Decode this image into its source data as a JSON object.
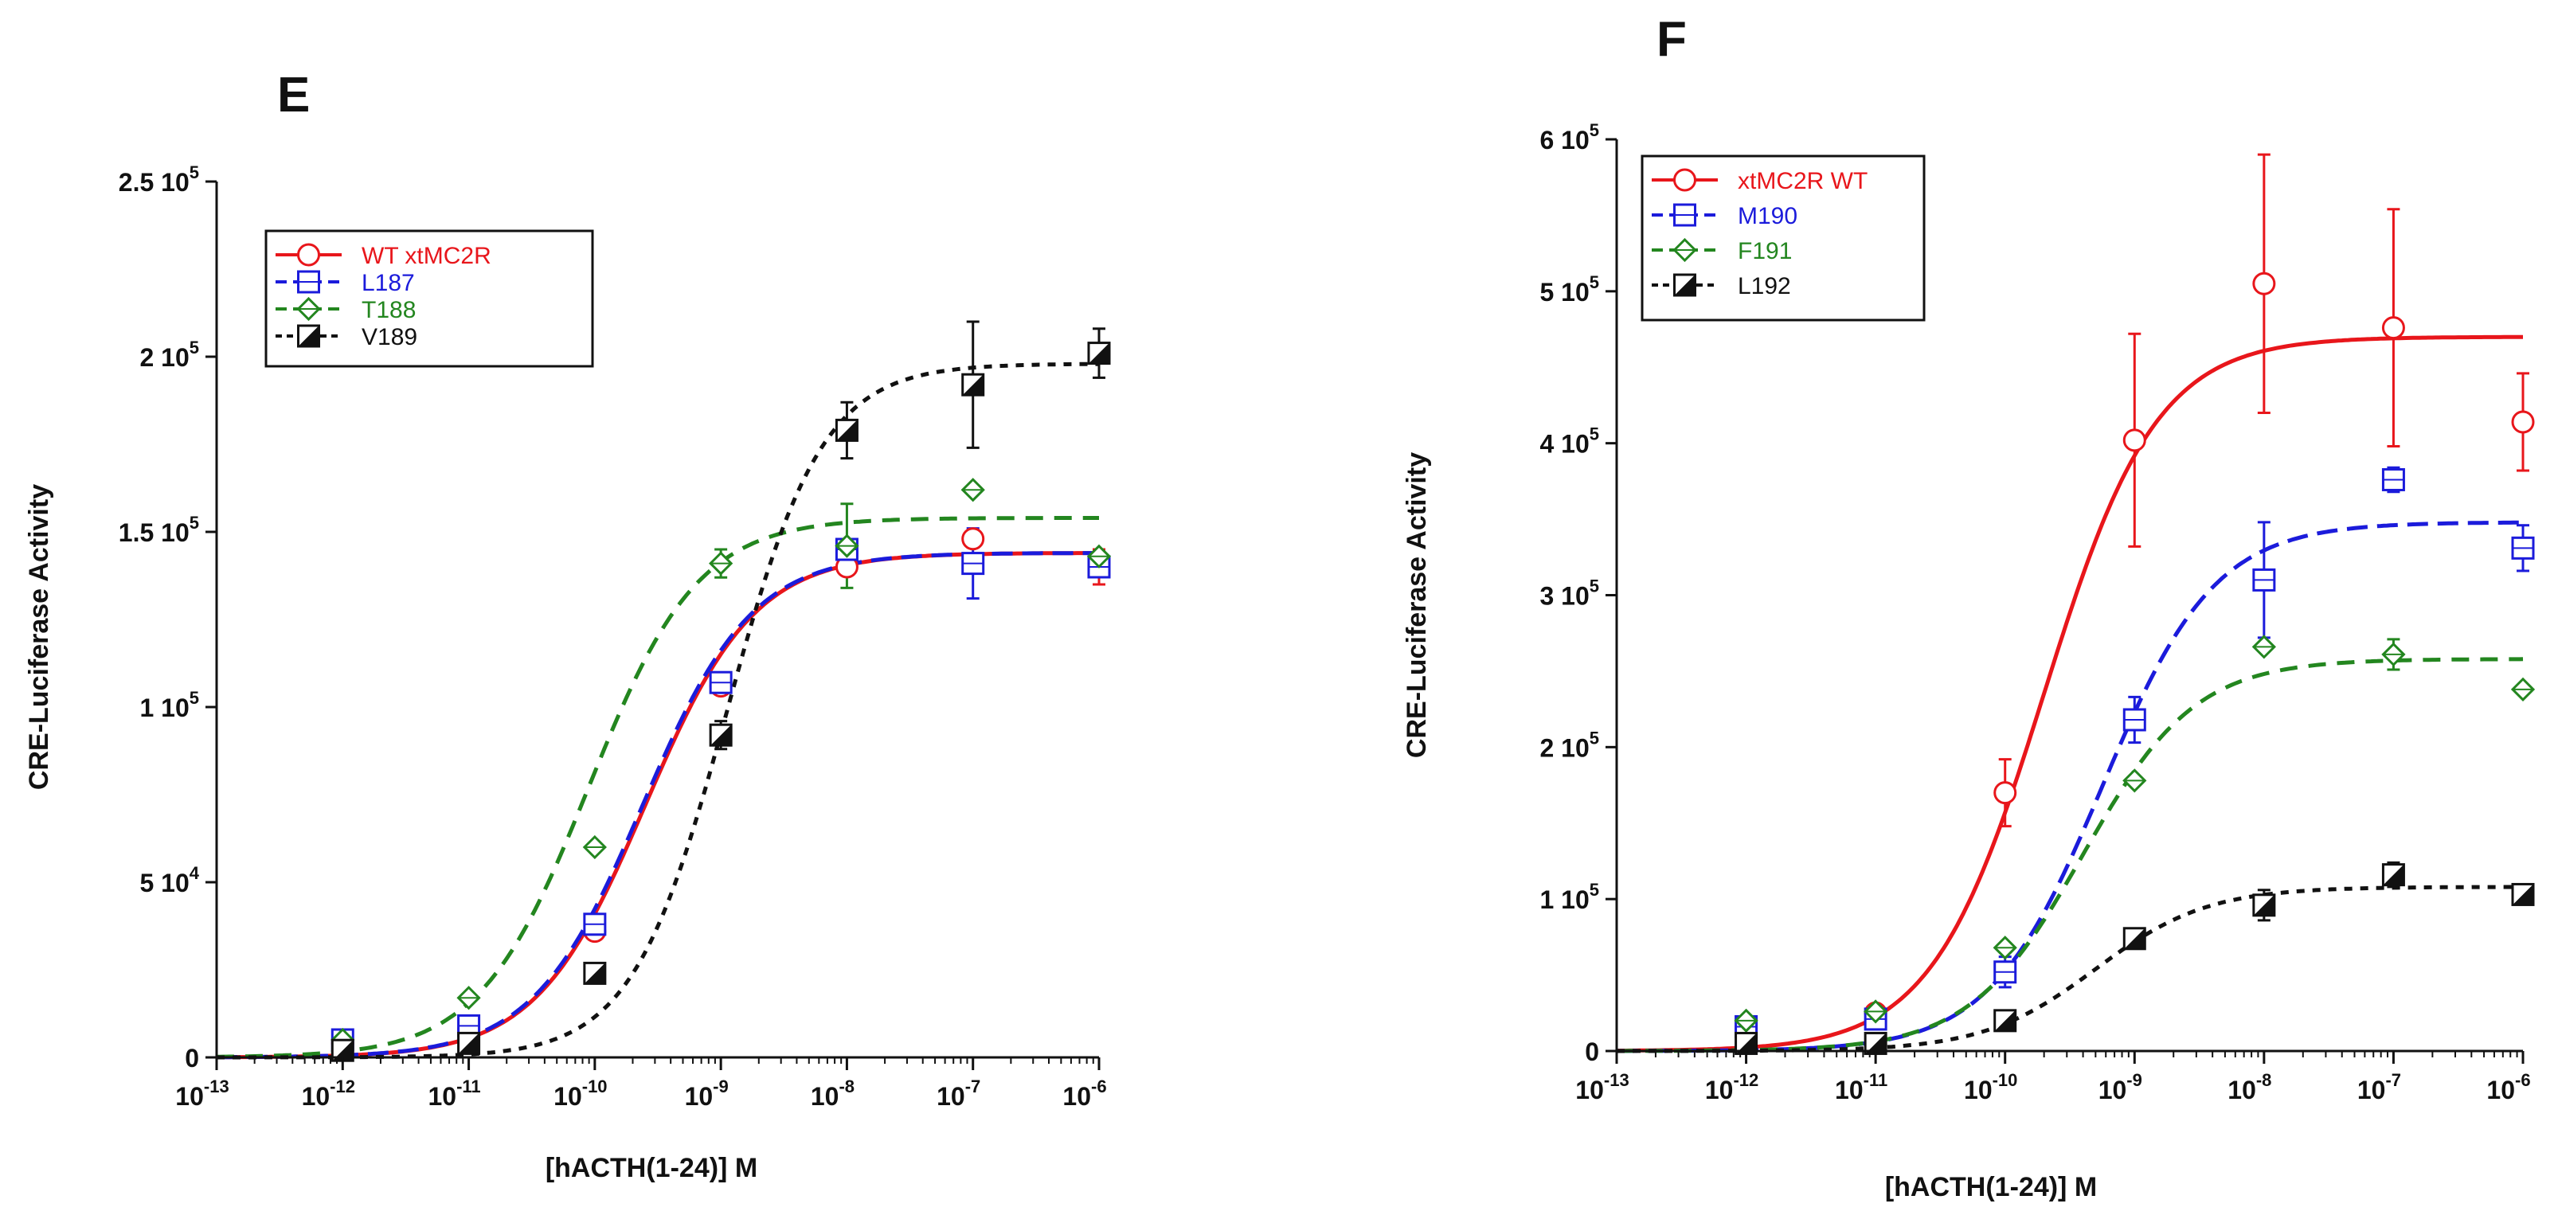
{
  "chart_data": [
    {
      "panel_label": "E",
      "type": "scatter",
      "xscale": "log",
      "xlim_exponent": [
        -13,
        -6
      ],
      "ylim": [
        0,
        250000
      ],
      "xlabel": "[hACTH(1-24)] M",
      "ylabel": "CRE-Luciferase Activity",
      "x_ticks": [
        {
          "base": "10",
          "exp": "-13"
        },
        {
          "base": "10",
          "exp": "-12"
        },
        {
          "base": "10",
          "exp": "-11"
        },
        {
          "base": "10",
          "exp": "-10"
        },
        {
          "base": "10",
          "exp": "-9"
        },
        {
          "base": "10",
          "exp": "-8"
        },
        {
          "base": "10",
          "exp": "-7"
        },
        {
          "base": "10",
          "exp": "-6"
        }
      ],
      "y_ticks": [
        {
          "value": 0,
          "mant": "0",
          "exp": ""
        },
        {
          "value": 50000,
          "mant": "5 10",
          "exp": "4"
        },
        {
          "value": 100000,
          "mant": "1 10",
          "exp": "5"
        },
        {
          "value": 150000,
          "mant": "1.5 10",
          "exp": "5"
        },
        {
          "value": 200000,
          "mant": "2 10",
          "exp": "5"
        },
        {
          "value": 250000,
          "mant": "2.5 10",
          "exp": "5"
        }
      ],
      "series": [
        {
          "name": "WT xtMC2R",
          "color": "#e8161b",
          "marker": "circle",
          "dash": "solid",
          "x_exp": [
            -12,
            -11,
            -10,
            -9,
            -8,
            -7,
            -6
          ],
          "y": [
            4000,
            8000,
            36000,
            106000,
            140000,
            148000,
            140000
          ],
          "err": [
            0,
            0,
            0,
            0,
            0,
            0,
            5000
          ],
          "fit": {
            "bottom": 0,
            "top": 144000,
            "log_ec50": -9.6,
            "hill": 1.0
          }
        },
        {
          "name": "L187",
          "color": "#1b1bdb",
          "marker": "square",
          "dash": "longdash",
          "x_exp": [
            -12,
            -11,
            -10,
            -9,
            -8,
            -7,
            -6
          ],
          "y": [
            5000,
            9000,
            38000,
            107000,
            145000,
            141000,
            140000
          ],
          "err": [
            0,
            0,
            0,
            0,
            0,
            10000,
            0
          ],
          "fit": {
            "bottom": 0,
            "top": 144000,
            "log_ec50": -9.62,
            "hill": 1.0
          }
        },
        {
          "name": "T188",
          "color": "#23861f",
          "marker": "diamond",
          "dash": "dash",
          "x_exp": [
            -12,
            -11,
            -10,
            -9,
            -8,
            -7,
            -6
          ],
          "y": [
            5000,
            17000,
            60000,
            141000,
            146000,
            162000,
            143000
          ],
          "err": [
            0,
            0,
            0,
            4000,
            12000,
            0,
            0
          ],
          "fit": {
            "bottom": 0,
            "top": 154000,
            "log_ec50": -10.05,
            "hill": 1.0
          }
        },
        {
          "name": "V189",
          "color": "#111111",
          "marker": "halfsquare",
          "dash": "dot",
          "x_exp": [
            -12,
            -11,
            -10,
            -9,
            -8,
            -7,
            -6
          ],
          "y": [
            2000,
            4000,
            24000,
            92000,
            179000,
            192000,
            201000
          ],
          "err": [
            0,
            0,
            0,
            4000,
            8000,
            18000,
            7000
          ],
          "fit": {
            "bottom": 0,
            "top": 198000,
            "log_ec50": -8.95,
            "hill": 1.15
          }
        }
      ]
    },
    {
      "panel_label": "F",
      "type": "scatter",
      "xscale": "log",
      "xlim_exponent": [
        -13,
        -6
      ],
      "ylim": [
        0,
        600000
      ],
      "xlabel": "[hACTH(1-24)] M",
      "ylabel": "CRE-Luciferase Activity",
      "x_ticks": [
        {
          "base": "10",
          "exp": "-13"
        },
        {
          "base": "10",
          "exp": "-12"
        },
        {
          "base": "10",
          "exp": "-11"
        },
        {
          "base": "10",
          "exp": "-10"
        },
        {
          "base": "10",
          "exp": "-9"
        },
        {
          "base": "10",
          "exp": "-8"
        },
        {
          "base": "10",
          "exp": "-7"
        },
        {
          "base": "10",
          "exp": "-6"
        }
      ],
      "y_ticks": [
        {
          "value": 0,
          "mant": "0",
          "exp": ""
        },
        {
          "value": 100000,
          "mant": "1 10",
          "exp": "5"
        },
        {
          "value": 200000,
          "mant": "2 10",
          "exp": "5"
        },
        {
          "value": 300000,
          "mant": "3 10",
          "exp": "5"
        },
        {
          "value": 400000,
          "mant": "4 10",
          "exp": "5"
        },
        {
          "value": 500000,
          "mant": "5 10",
          "exp": "5"
        },
        {
          "value": 600000,
          "mant": "6 10",
          "exp": "5"
        }
      ],
      "series": [
        {
          "name": "xtMC2R WT",
          "color": "#e8161b",
          "marker": "circle",
          "dash": "solid",
          "x_exp": [
            -12,
            -11,
            -10,
            -9,
            -8,
            -7,
            -6
          ],
          "y": [
            15000,
            25000,
            170000,
            402000,
            505000,
            476000,
            414000
          ],
          "err": [
            0,
            0,
            22000,
            70000,
            85000,
            78000,
            32000
          ],
          "fit": {
            "bottom": 0,
            "top": 470000,
            "log_ec50": -9.7,
            "hill": 1.0
          }
        },
        {
          "name": "M190",
          "color": "#1b1bdb",
          "marker": "square",
          "dash": "longdash",
          "x_exp": [
            -12,
            -11,
            -10,
            -9,
            -8,
            -7,
            -6
          ],
          "y": [
            16000,
            21000,
            52000,
            218000,
            310000,
            376000,
            331000
          ],
          "err": [
            0,
            0,
            10000,
            15000,
            38000,
            8000,
            15000
          ],
          "fit": {
            "bottom": 0,
            "top": 348000,
            "log_ec50": -9.25,
            "hill": 1.0
          }
        },
        {
          "name": "F191",
          "color": "#23861f",
          "marker": "diamond",
          "dash": "dash",
          "x_exp": [
            -12,
            -11,
            -10,
            -9,
            -8,
            -7,
            -6
          ],
          "y": [
            20000,
            26000,
            68000,
            178000,
            266000,
            261000,
            238000
          ],
          "err": [
            0,
            0,
            0,
            0,
            0,
            10000,
            0
          ],
          "fit": {
            "bottom": 0,
            "top": 258000,
            "log_ec50": -9.4,
            "hill": 1.0
          }
        },
        {
          "name": "L192",
          "color": "#111111",
          "marker": "halfsquare",
          "dash": "dot",
          "x_exp": [
            -12,
            -11,
            -10,
            -9,
            -8,
            -7,
            -6
          ],
          "y": [
            5000,
            5000,
            20000,
            74000,
            96000,
            116000,
            103000
          ],
          "err": [
            0,
            0,
            0,
            0,
            10000,
            8000,
            0
          ],
          "fit": {
            "bottom": 0,
            "top": 108000,
            "log_ec50": -9.3,
            "hill": 1.0
          }
        }
      ]
    }
  ]
}
